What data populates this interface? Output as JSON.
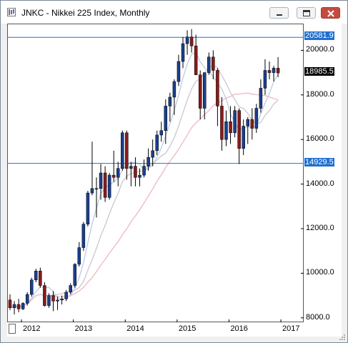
{
  "window": {
    "title": "JNKC - Nikkei 225 Index, Monthly",
    "icons": [
      "chart-app-icon",
      "minimize-icon",
      "maximize-icon",
      "close-icon"
    ]
  },
  "chart_data": {
    "type": "candlestick",
    "symbol": "JNKC",
    "title": "JNKC - Nikkei 225 Index, Monthly",
    "y_ticks": [
      "8000.0",
      "10000.0",
      "12000.0",
      "14000.0",
      "16000.0",
      "18000.0",
      "20000.0"
    ],
    "x_ticks": [
      "2012",
      "2013",
      "2014",
      "2015",
      "2016",
      "2017"
    ],
    "ylim": [
      7800,
      21200
    ],
    "horizontal_lines": [
      {
        "value": 20581.9,
        "label": "20581.9",
        "color": "#1f6fd0"
      },
      {
        "value": 14929.5,
        "label": "14929.5",
        "color": "#1f6fd0"
      }
    ],
    "last_price": {
      "value": 18985.5,
      "label": "18985.5"
    },
    "colors": {
      "up": "#1a3f8f",
      "down": "#8b1a1a",
      "ma_fast": "#b9cde6",
      "ma_slow": "#f0b6c4",
      "ma_mid": "#c8c8d0"
    },
    "ohlc": [
      [
        8800,
        9050,
        8350,
        8450
      ],
      [
        8450,
        8750,
        8150,
        8600
      ],
      [
        8600,
        8850,
        8250,
        8400
      ],
      [
        8400,
        8700,
        8350,
        8650
      ],
      [
        8650,
        9150,
        8550,
        9050
      ],
      [
        9050,
        9800,
        8950,
        9700
      ],
      [
        9700,
        10200,
        9600,
        10100
      ],
      [
        10100,
        10250,
        9350,
        9450
      ],
      [
        9450,
        9600,
        8500,
        8550
      ],
      [
        8550,
        9100,
        8450,
        9000
      ],
      [
        9000,
        9200,
        8300,
        8750
      ],
      [
        8750,
        8950,
        8350,
        8800
      ],
      [
        8800,
        9000,
        8600,
        8850
      ],
      [
        8850,
        9250,
        8750,
        9150
      ],
      [
        9150,
        9550,
        9050,
        9450
      ],
      [
        9450,
        10450,
        9350,
        10400
      ],
      [
        10400,
        11400,
        10300,
        11150
      ],
      [
        11150,
        12300,
        11000,
        12200
      ],
      [
        12200,
        13700,
        12100,
        13600
      ],
      [
        13600,
        15900,
        13500,
        13800
      ],
      [
        13800,
        14300,
        12500,
        13800
      ],
      [
        13800,
        14900,
        13300,
        14500
      ],
      [
        14500,
        14800,
        13200,
        13400
      ],
      [
        13400,
        14500,
        13300,
        14400
      ],
      [
        14400,
        15500,
        14100,
        14300
      ],
      [
        14300,
        15000,
        13900,
        14700
      ],
      [
        14700,
        16400,
        14600,
        16300
      ],
      [
        16300,
        16400,
        14200,
        14700
      ],
      [
        14700,
        15000,
        13900,
        14800
      ],
      [
        14800,
        15200,
        13900,
        14300
      ],
      [
        14300,
        14700,
        13900,
        14400
      ],
      [
        14400,
        15100,
        14300,
        14800
      ],
      [
        14800,
        15600,
        14600,
        15200
      ],
      [
        15200,
        16000,
        14800,
        15500
      ],
      [
        15500,
        16400,
        15300,
        16200
      ],
      [
        16200,
        16800,
        15900,
        16400
      ],
      [
        16400,
        17800,
        15800,
        17500
      ],
      [
        17500,
        18100,
        16800,
        17900
      ],
      [
        17900,
        18700,
        17100,
        18600
      ],
      [
        18600,
        19800,
        18400,
        19500
      ],
      [
        19500,
        20600,
        19200,
        20300
      ],
      [
        20300,
        20900,
        19800,
        20600
      ],
      [
        20600,
        20950,
        19900,
        20200
      ],
      [
        20200,
        20700,
        18900,
        18900
      ],
      [
        18900,
        19100,
        16900,
        17400
      ],
      [
        17400,
        19000,
        16900,
        19000
      ],
      [
        19000,
        19900,
        18900,
        19700
      ],
      [
        19700,
        20000,
        18700,
        19100
      ],
      [
        19100,
        19200,
        16600,
        17500
      ],
      [
        17500,
        17900,
        15500,
        16000
      ],
      [
        16000,
        17300,
        15700,
        16800
      ],
      [
        16800,
        17500,
        15800,
        16300
      ],
      [
        16300,
        17500,
        16100,
        17300
      ],
      [
        17300,
        17400,
        14900,
        15600
      ],
      [
        15600,
        16900,
        15300,
        16600
      ],
      [
        16600,
        17000,
        15800,
        16900
      ],
      [
        16900,
        17400,
        16000,
        16500
      ],
      [
        16500,
        17600,
        16300,
        17400
      ],
      [
        17400,
        18700,
        17200,
        18300
      ],
      [
        18300,
        19600,
        18000,
        19100
      ],
      [
        19100,
        19500,
        18700,
        19000
      ],
      [
        19000,
        19300,
        18600,
        19200
      ],
      [
        19200,
        19700,
        18800,
        18985
      ]
    ]
  }
}
